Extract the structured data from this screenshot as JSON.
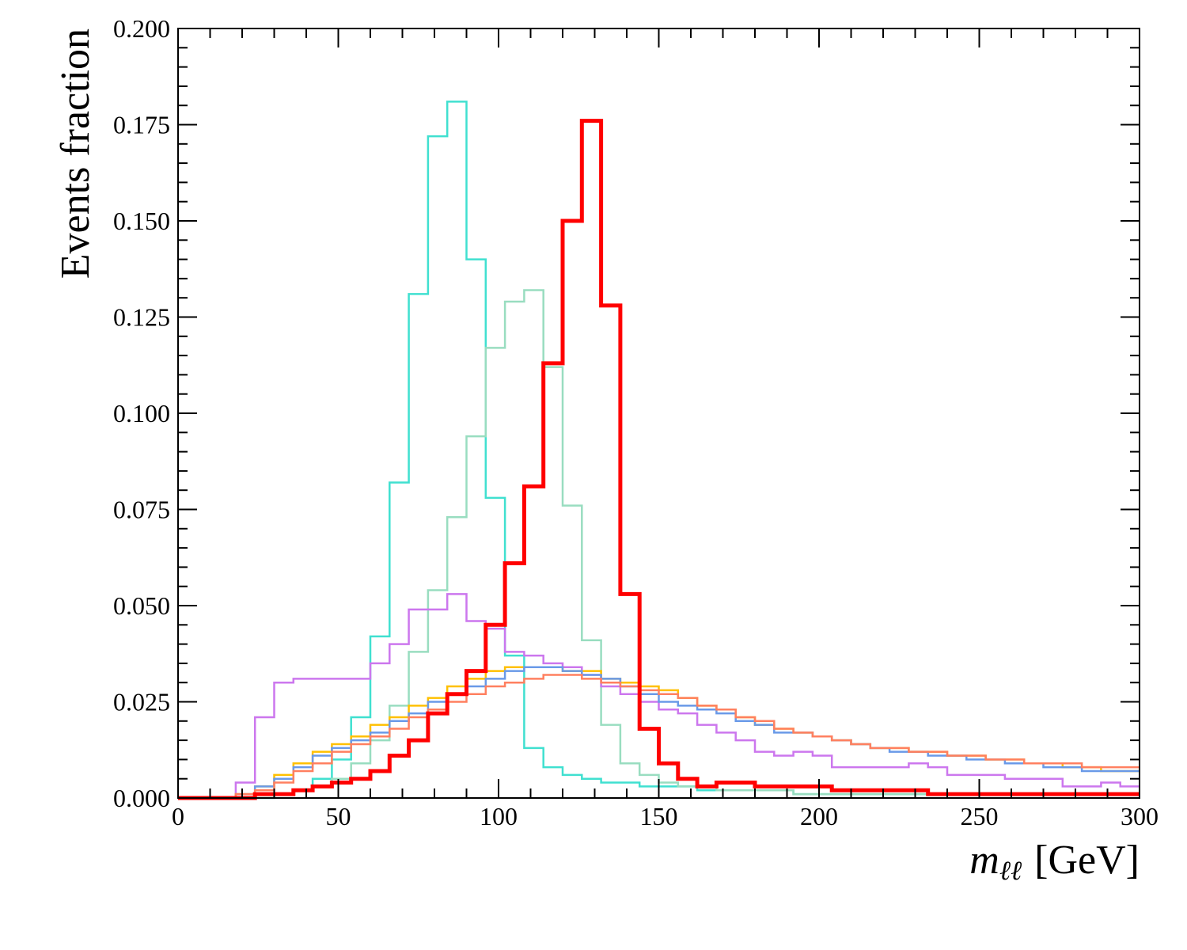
{
  "chart_data": {
    "type": "line",
    "histogram": true,
    "bin_width": 6,
    "x_bin_edges_start": 0,
    "xlabel_main": "m",
    "xlabel_sub": "ℓℓ",
    "xlabel_unit": "[GeV]",
    "ylabel": "Events fraction",
    "xlim": [
      0,
      300
    ],
    "ylim": [
      0,
      0.2
    ],
    "x_ticks": [
      0,
      50,
      100,
      150,
      200,
      250,
      300
    ],
    "x_tick_labels": [
      "0",
      "50",
      "100",
      "150",
      "200",
      "250",
      "300"
    ],
    "y_ticks": [
      0,
      0.025,
      0.05,
      0.075,
      0.1,
      0.125,
      0.15,
      0.175,
      0.2
    ],
    "y_tick_labels": [
      "0.000",
      "0.025",
      "0.050",
      "0.075",
      "0.100",
      "0.125",
      "0.150",
      "0.175",
      "0.200"
    ],
    "grid": false,
    "series": [
      {
        "color": "#40e0d0",
        "width": 2.5,
        "values": [
          0,
          0,
          0,
          0,
          0,
          0.001,
          0.002,
          0.005,
          0.01,
          0.021,
          0.042,
          0.082,
          0.131,
          0.172,
          0.181,
          0.14,
          0.078,
          0.037,
          0.013,
          0.008,
          0.006,
          0.005,
          0.004,
          0.004,
          0.003,
          0.003,
          0.003,
          0.002,
          0.002,
          0.002,
          0.002,
          0.002,
          0.001,
          0.001,
          0.001,
          0.001,
          0.001,
          0.001,
          0.001,
          0.001,
          0.001,
          0.001,
          0.001,
          0.001,
          0.001,
          0.001,
          0.001,
          0.001,
          0.001,
          0.001
        ]
      },
      {
        "color": "#99ddc0",
        "width": 2.5,
        "values": [
          0,
          0,
          0,
          0,
          0,
          0.001,
          0.002,
          0.003,
          0.005,
          0.009,
          0.015,
          0.024,
          0.038,
          0.054,
          0.073,
          0.094,
          0.117,
          0.129,
          0.132,
          0.112,
          0.076,
          0.041,
          0.019,
          0.009,
          0.006,
          0.004,
          0.003,
          0.003,
          0.002,
          0.002,
          0.002,
          0.002,
          0.001,
          0.001,
          0.001,
          0.001,
          0.001,
          0.001,
          0.001,
          0.001,
          0.001,
          0.001,
          0.001,
          0.001,
          0.001,
          0.001,
          0.001,
          0.001,
          0.001,
          0.001
        ]
      },
      {
        "color": "#cc77ee",
        "width": 2.5,
        "values": [
          0,
          0,
          0,
          0.004,
          0.021,
          0.03,
          0.031,
          0.031,
          0.031,
          0.031,
          0.035,
          0.04,
          0.049,
          0.049,
          0.053,
          0.046,
          0.044,
          0.038,
          0.037,
          0.035,
          0.034,
          0.032,
          0.029,
          0.027,
          0.025,
          0.023,
          0.022,
          0.019,
          0.017,
          0.015,
          0.012,
          0.011,
          0.012,
          0.011,
          0.008,
          0.008,
          0.008,
          0.008,
          0.009,
          0.008,
          0.006,
          0.006,
          0.006,
          0.005,
          0.005,
          0.005,
          0.003,
          0.003,
          0.004,
          0.003
        ]
      },
      {
        "color": "#ffc000",
        "width": 2.5,
        "values": [
          0,
          0,
          0,
          0.001,
          0.003,
          0.006,
          0.009,
          0.012,
          0.014,
          0.016,
          0.019,
          0.021,
          0.024,
          0.026,
          0.029,
          0.031,
          0.033,
          0.034,
          0.034,
          0.034,
          0.033,
          0.033,
          0.031,
          0.03,
          0.029,
          0.028,
          0.026,
          0.024,
          0.023,
          0.021,
          0.019,
          0.018,
          0.017,
          0.016,
          0.015,
          0.014,
          0.013,
          0.013,
          0.012,
          0.012,
          0.011,
          0.011,
          0.01,
          0.01,
          0.009,
          0.009,
          0.008,
          0.008,
          0.007,
          0.007
        ]
      },
      {
        "color": "#6a9ae8",
        "width": 2.5,
        "values": [
          0,
          0,
          0,
          0.001,
          0.003,
          0.005,
          0.008,
          0.011,
          0.013,
          0.015,
          0.017,
          0.02,
          0.022,
          0.025,
          0.027,
          0.029,
          0.031,
          0.033,
          0.034,
          0.034,
          0.033,
          0.032,
          0.031,
          0.029,
          0.027,
          0.025,
          0.024,
          0.023,
          0.022,
          0.02,
          0.019,
          0.017,
          0.017,
          0.016,
          0.015,
          0.014,
          0.013,
          0.012,
          0.012,
          0.011,
          0.011,
          0.01,
          0.01,
          0.009,
          0.009,
          0.008,
          0.008,
          0.007,
          0.007,
          0.007
        ]
      },
      {
        "color": "#ff8060",
        "width": 2.5,
        "values": [
          0,
          0,
          0,
          0.001,
          0.002,
          0.004,
          0.007,
          0.009,
          0.012,
          0.014,
          0.016,
          0.018,
          0.021,
          0.023,
          0.025,
          0.027,
          0.029,
          0.03,
          0.031,
          0.032,
          0.032,
          0.031,
          0.03,
          0.029,
          0.028,
          0.027,
          0.026,
          0.024,
          0.023,
          0.021,
          0.02,
          0.018,
          0.017,
          0.016,
          0.015,
          0.014,
          0.013,
          0.013,
          0.012,
          0.012,
          0.011,
          0.011,
          0.01,
          0.01,
          0.009,
          0.009,
          0.009,
          0.008,
          0.008,
          0.008
        ]
      },
      {
        "color": "#ff0000",
        "width": 5,
        "values": [
          0,
          0,
          0,
          0,
          0.001,
          0.001,
          0.002,
          0.003,
          0.004,
          0.005,
          0.007,
          0.011,
          0.015,
          0.022,
          0.027,
          0.033,
          0.045,
          0.061,
          0.081,
          0.113,
          0.15,
          0.176,
          0.128,
          0.053,
          0.018,
          0.009,
          0.005,
          0.003,
          0.004,
          0.004,
          0.003,
          0.003,
          0.003,
          0.003,
          0.002,
          0.002,
          0.002,
          0.002,
          0.002,
          0.001,
          0.001,
          0.001,
          0.001,
          0.001,
          0.001,
          0.001,
          0.001,
          0.001,
          0.001,
          0.001
        ]
      }
    ]
  }
}
